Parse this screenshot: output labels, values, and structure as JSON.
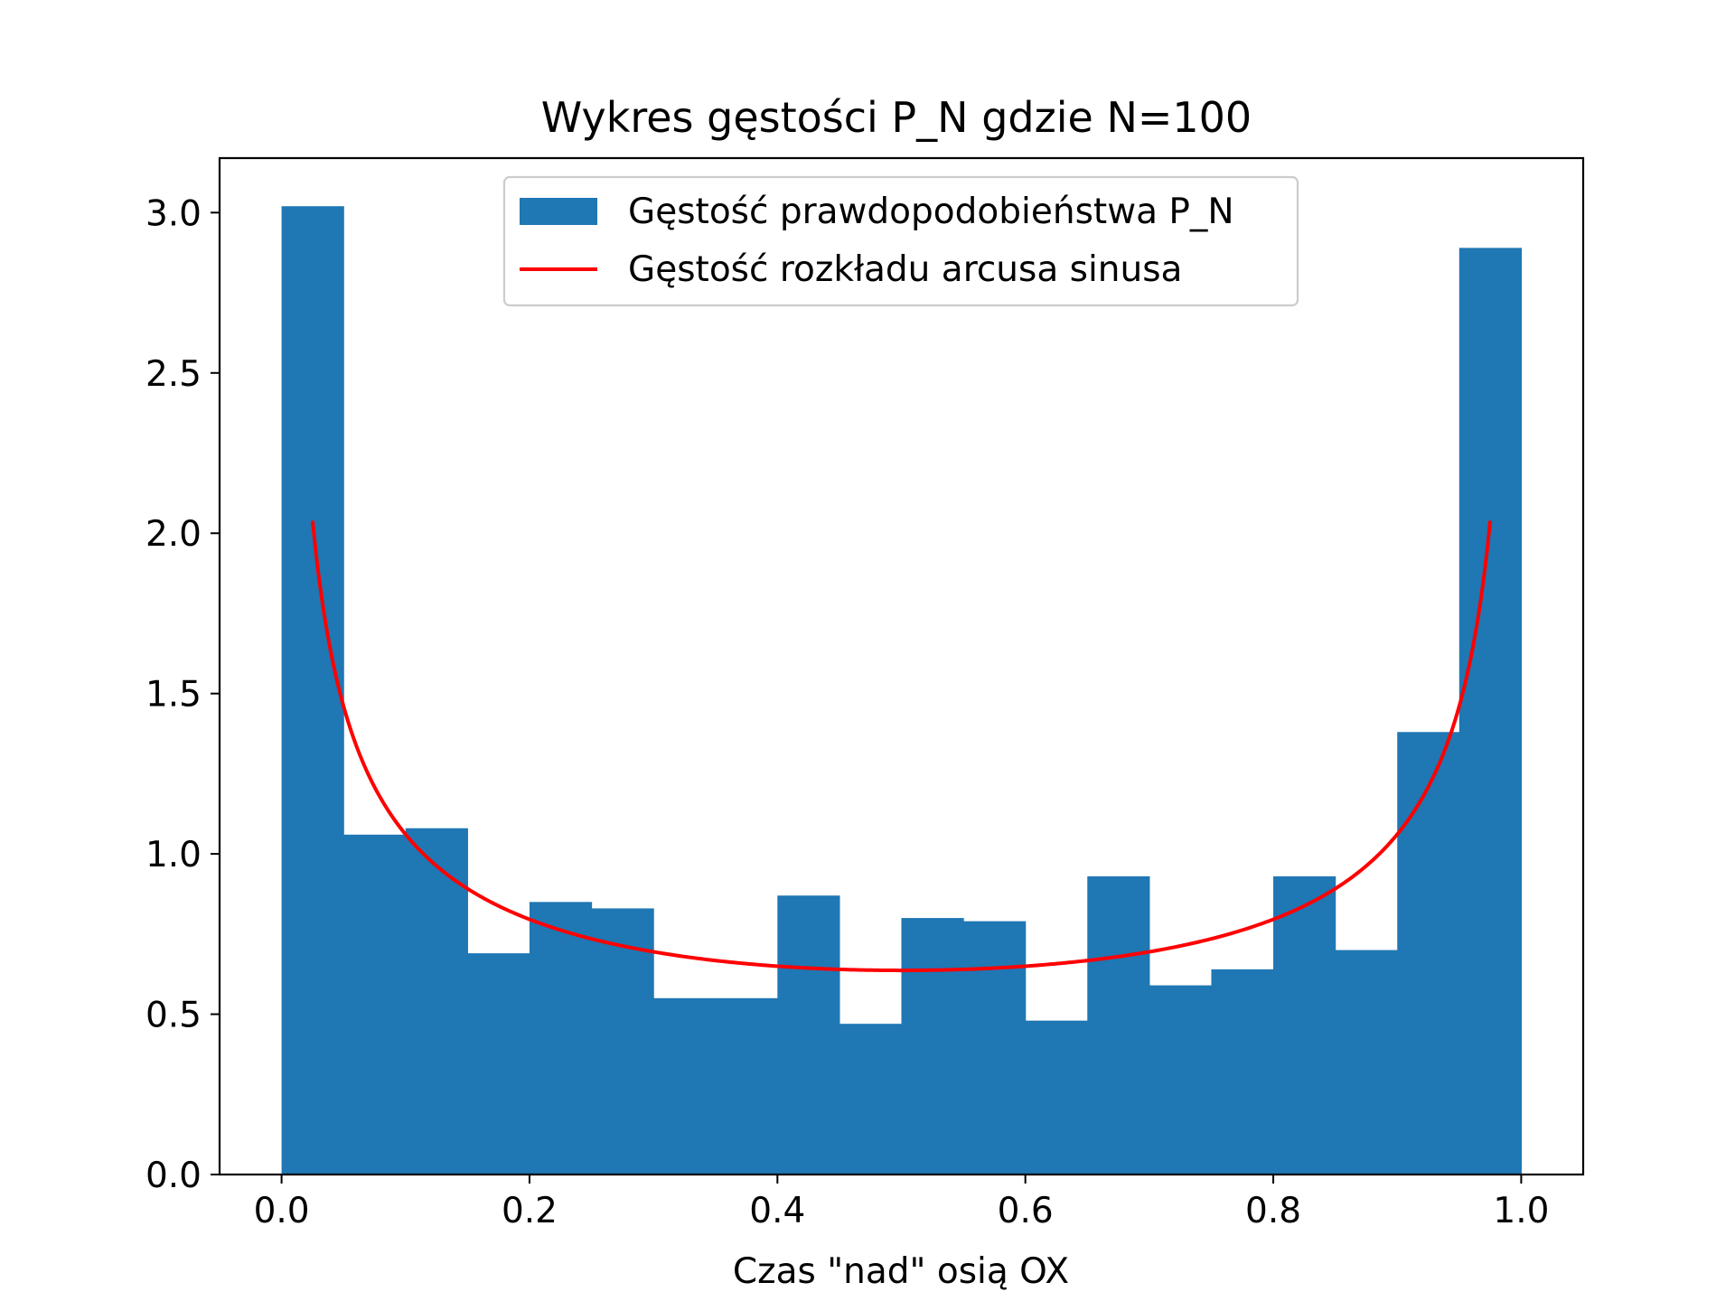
{
  "chart_data": {
    "type": "bar",
    "title": "Wykres gęstości P_N gdzie N=100",
    "xlabel": "Czas \"nad\" osią OX",
    "ylabel": "",
    "xlim": [
      -0.05,
      1.05
    ],
    "ylim": [
      0,
      3.17
    ],
    "xticks": [
      0.0,
      0.2,
      0.4,
      0.6,
      0.8,
      1.0
    ],
    "xtick_labels": [
      "0.0",
      "0.2",
      "0.4",
      "0.6",
      "0.8",
      "1.0"
    ],
    "yticks": [
      0.0,
      0.5,
      1.0,
      1.5,
      2.0,
      2.5,
      3.0
    ],
    "ytick_labels": [
      "0.0",
      "0.5",
      "1.0",
      "1.5",
      "2.0",
      "2.5",
      "3.0"
    ],
    "grid": false,
    "legend_position": "upper-center",
    "histogram": {
      "name": "Gęstość prawdopodobieństwa P_N",
      "color": "#1f77b4",
      "bin_edges": [
        0.0,
        0.05,
        0.1,
        0.15,
        0.2,
        0.25,
        0.3,
        0.35,
        0.4,
        0.45,
        0.5,
        0.55,
        0.6,
        0.65,
        0.7,
        0.75,
        0.8,
        0.85,
        0.9,
        0.95,
        1.0
      ],
      "values": [
        3.02,
        1.06,
        1.08,
        0.69,
        0.85,
        0.83,
        0.55,
        0.55,
        0.87,
        0.47,
        0.8,
        0.79,
        0.48,
        0.93,
        0.59,
        0.64,
        0.93,
        0.7,
        1.38,
        2.89
      ]
    },
    "line": {
      "name": "Gęstość rozkładu arcusa sinusa",
      "color": "#ff0000",
      "function": "1/(pi*sqrt(x*(1-x)))",
      "x_range": [
        0.025,
        0.975
      ]
    }
  }
}
